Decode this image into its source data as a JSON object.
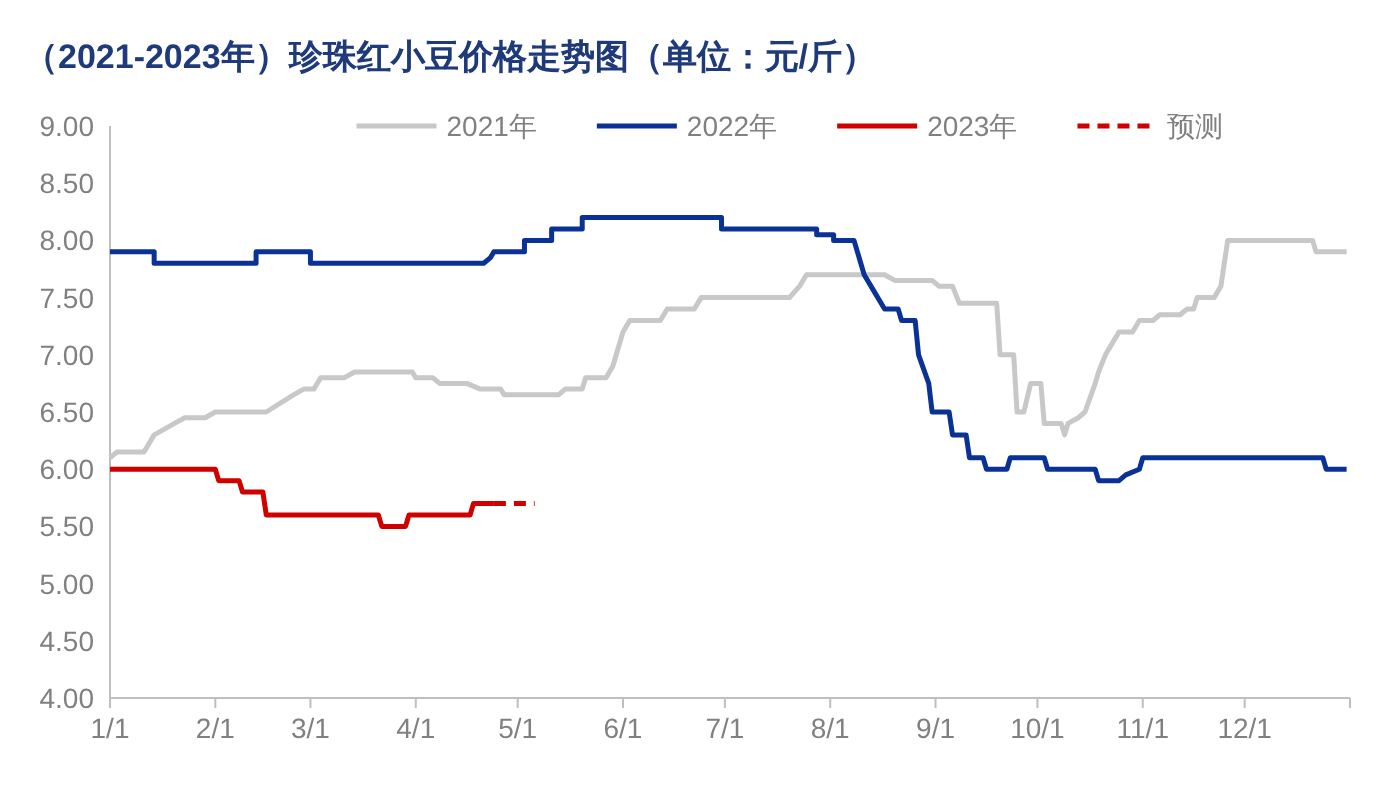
{
  "chart_data": {
    "type": "line",
    "title": "（2021-2023年）珍珠红小豆价格走势图（单位：元/斤）",
    "xlim": [
      "--01-01",
      "--12-31"
    ],
    "xticks": [
      {
        "value": "--01-01",
        "label": "1/1"
      },
      {
        "value": "--02-01",
        "label": "2/1"
      },
      {
        "value": "--03-01",
        "label": "3/1"
      },
      {
        "value": "--04-01",
        "label": "4/1"
      },
      {
        "value": "--05-01",
        "label": "5/1"
      },
      {
        "value": "--06-01",
        "label": "6/1"
      },
      {
        "value": "--07-01",
        "label": "7/1"
      },
      {
        "value": "--08-01",
        "label": "8/1"
      },
      {
        "value": "--09-01",
        "label": "9/1"
      },
      {
        "value": "--10-01",
        "label": "10/1"
      },
      {
        "value": "--11-01",
        "label": "11/1"
      },
      {
        "value": "--12-01",
        "label": "12/1"
      },
      {
        "value": "--12-31",
        "label": null
      }
    ],
    "ylim": [
      4,
      9
    ],
    "yticks": [
      {
        "value": 4,
        "label": "4.00"
      },
      {
        "value": 4.5,
        "label": "4.50"
      },
      {
        "value": 5,
        "label": "5.00"
      },
      {
        "value": 5.5,
        "label": "5.50"
      },
      {
        "value": 6,
        "label": "6.00"
      },
      {
        "value": 6.5,
        "label": "6.50"
      },
      {
        "value": 7,
        "label": "7.00"
      },
      {
        "value": 7.5,
        "label": "7.50"
      },
      {
        "value": 8,
        "label": "8.00"
      },
      {
        "value": 8.5,
        "label": "8.50"
      },
      {
        "value": 9,
        "label": "9.00"
      }
    ],
    "legend": "top",
    "series": [
      {
        "name": "2021年",
        "color": "#c8c8c8",
        "x": [
          "--01-01",
          "--01-03",
          "--01-11",
          "--01-14",
          "--01-17",
          "--01-20",
          "--01-23",
          "--01-29",
          "--02-01",
          "--02-16",
          "--02-24",
          "--02-27",
          "--03-02",
          "--03-04",
          "--03-11",
          "--03-14",
          "--03-31",
          "--04-01",
          "--04-06",
          "--04-08",
          "--04-16",
          "--04-20",
          "--04-26",
          "--04-27",
          "--05-13",
          "--05-15",
          "--05-20",
          "--05-21",
          "--05-27",
          "--05-29",
          "--06-01",
          "--06-03",
          "--06-12",
          "--06-14",
          "--06-22",
          "--06-24",
          "--07-20",
          "--07-23",
          "--07-25",
          "--08-17",
          "--08-20",
          "--08-31",
          "--09-02",
          "--09-06",
          "--09-08",
          "--09-19",
          "--09-20",
          "--09-24",
          "--09-25",
          "--09-27",
          "--09-29",
          "--10-02",
          "--10-03",
          "--10-08",
          "--10-09",
          "--10-10",
          "--10-13",
          "--10-15",
          "--10-18",
          "--10-19",
          "--10-21",
          "--10-23",
          "--10-25",
          "--10-29",
          "--10-31",
          "--11-04",
          "--11-06",
          "--11-12",
          "--11-14",
          "--11-16",
          "--11-17",
          "--11-22",
          "--11-24",
          "--11-26",
          "--12-21",
          "--12-22",
          "--12-31"
        ],
        "values": [
          6.1,
          6.15,
          6.15,
          6.3,
          6.35,
          6.4,
          6.45,
          6.45,
          6.5,
          6.5,
          6.65,
          6.7,
          6.7,
          6.8,
          6.8,
          6.85,
          6.85,
          6.8,
          6.8,
          6.75,
          6.75,
          6.7,
          6.7,
          6.65,
          6.65,
          6.7,
          6.7,
          6.8,
          6.8,
          6.9,
          7.2,
          7.3,
          7.3,
          7.4,
          7.4,
          7.5,
          7.5,
          7.6,
          7.7,
          7.7,
          7.65,
          7.65,
          7.6,
          7.6,
          7.45,
          7.45,
          7.0,
          7.0,
          6.5,
          6.5,
          6.75,
          6.75,
          6.4,
          6.4,
          6.3,
          6.4,
          6.45,
          6.5,
          6.75,
          6.85,
          7.0,
          7.1,
          7.2,
          7.2,
          7.3,
          7.3,
          7.35,
          7.35,
          7.4,
          7.4,
          7.5,
          7.5,
          7.6,
          8.0,
          8.0,
          7.9,
          7.9
        ]
      },
      {
        "name": "2022年",
        "color": "#0a3296",
        "x": [
          "--01-01",
          "--01-14",
          "--01-14",
          "--02-13",
          "--02-13",
          "--03-01",
          "--03-01",
          "--04-21",
          "--04-23",
          "--04-24",
          "--05-03",
          "--05-03",
          "--05-11",
          "--05-11",
          "--05-20",
          "--05-20",
          "--06-30",
          "--06-30",
          "--07-28",
          "--07-28",
          "--08-02",
          "--08-02",
          "--08-08",
          "--08-11",
          "--08-14",
          "--08-17",
          "--08-21",
          "--08-22",
          "--08-26",
          "--08-27",
          "--08-30",
          "--08-31",
          "--09-05",
          "--09-06",
          "--09-10",
          "--09-11",
          "--09-15",
          "--09-16",
          "--09-22",
          "--09-23",
          "--10-03",
          "--10-04",
          "--10-18",
          "--10-19",
          "--10-25",
          "--10-27",
          "--10-31",
          "--11-01",
          "--12-24",
          "--12-25",
          "--12-31"
        ],
        "values": [
          7.9,
          7.9,
          7.8,
          7.8,
          7.9,
          7.9,
          7.8,
          7.8,
          7.85,
          7.9,
          7.9,
          8.0,
          8.0,
          8.1,
          8.1,
          8.2,
          8.2,
          8.1,
          8.1,
          8.05,
          8.05,
          8.0,
          8.0,
          7.7,
          7.55,
          7.4,
          7.4,
          7.3,
          7.3,
          7.0,
          6.75,
          6.5,
          6.5,
          6.3,
          6.3,
          6.1,
          6.1,
          6.0,
          6.0,
          6.1,
          6.1,
          6.0,
          6.0,
          5.9,
          5.9,
          5.95,
          6.0,
          6.1,
          6.1,
          6.0,
          6.0
        ]
      },
      {
        "name": "2023年",
        "color": "#d00000",
        "x": [
          "--01-01",
          "--02-01",
          "--02-02",
          "--02-08",
          "--02-09",
          "--02-15",
          "--02-16",
          "--03-21",
          "--03-22",
          "--03-29",
          "--03-30",
          "--04-17",
          "--04-18",
          "--04-24"
        ],
        "values": [
          6.0,
          6.0,
          5.9,
          5.9,
          5.8,
          5.8,
          5.6,
          5.6,
          5.5,
          5.5,
          5.6,
          5.6,
          5.7,
          5.7
        ]
      },
      {
        "name": "预测",
        "color": "#d00000",
        "line_style": "dashed",
        "x": [
          "--04-24",
          "--05-06"
        ],
        "values": [
          5.7,
          5.7
        ]
      }
    ]
  }
}
